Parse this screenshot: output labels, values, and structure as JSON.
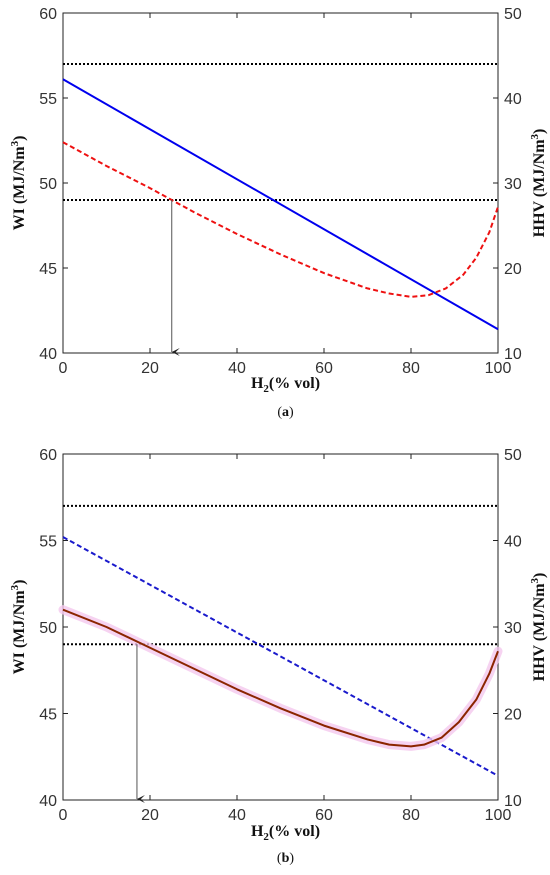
{
  "chart_data": [
    {
      "panel_label": "(",
      "panel_letter": "a",
      "panel_close": ")",
      "type": "line",
      "xlabel_main": "H",
      "xlabel_sub": "2",
      "xlabel_rest": "(% vol)",
      "ylabel_left": "WI (MJ/Nm",
      "ylabel_left_sup": "3",
      "ylabel_left_close": ")",
      "ylabel_right": "HHV (MJ/Nm",
      "ylabel_right_sup": "3",
      "ylabel_right_close": ")",
      "xlim": [
        0,
        100
      ],
      "ylim_left": [
        40,
        60
      ],
      "ylim_right": [
        10,
        50
      ],
      "xticks": [
        "0",
        "20",
        "40",
        "60",
        "80",
        "100"
      ],
      "yticks_left": [
        "40",
        "45",
        "50",
        "55",
        "60"
      ],
      "yticks_right": [
        "10",
        "20",
        "30",
        "40",
        "50"
      ],
      "series": [
        {
          "axis": "left",
          "color": "#0000ee",
          "dash": "solid",
          "points": [
            [
              0,
              56.1
            ],
            [
              100,
              41.4
            ]
          ]
        },
        {
          "axis": "left",
          "color": "#ee1111",
          "dash": "dashed",
          "points": [
            [
              0,
              52.4
            ],
            [
              10,
              51.0
            ],
            [
              20,
              49.7
            ],
            [
              30,
              48.3
            ],
            [
              40,
              47.0
            ],
            [
              50,
              45.8
            ],
            [
              60,
              44.7
            ],
            [
              70,
              43.8
            ],
            [
              75,
              43.5
            ],
            [
              80,
              43.3
            ],
            [
              84,
              43.4
            ],
            [
              88,
              43.8
            ],
            [
              92,
              44.6
            ],
            [
              95,
              45.6
            ],
            [
              98,
              47.1
            ],
            [
              100,
              48.6
            ]
          ]
        }
      ],
      "hlines": [
        {
          "axis": "left",
          "y": 57,
          "color": "#000000"
        },
        {
          "axis": "left",
          "y": 49,
          "color": "#000000"
        }
      ],
      "arrow": {
        "x": 25,
        "y_from": 49,
        "y_to": 40,
        "color": "#555555"
      }
    },
    {
      "panel_label": "(",
      "panel_letter": "b",
      "panel_close": ")",
      "type": "line",
      "xlabel_main": "H",
      "xlabel_sub": "2",
      "xlabel_rest": "(% vol)",
      "ylabel_left": "WI (MJ/Nm",
      "ylabel_left_sup": "3",
      "ylabel_left_close": ")",
      "ylabel_right": "HHV (MJ/Nm",
      "ylabel_right_sup": "3",
      "ylabel_right_close": ")",
      "xlim": [
        0,
        100
      ],
      "ylim_left": [
        40,
        60
      ],
      "ylim_right": [
        10,
        50
      ],
      "xticks": [
        "0",
        "20",
        "40",
        "60",
        "80",
        "100"
      ],
      "yticks_left": [
        "40",
        "45",
        "50",
        "55",
        "60"
      ],
      "yticks_right": [
        "10",
        "20",
        "30",
        "40",
        "50"
      ],
      "series": [
        {
          "axis": "left",
          "color": "#1a1acc",
          "dash": "dashed",
          "points": [
            [
              0,
              55.2
            ],
            [
              100,
              41.4
            ]
          ]
        },
        {
          "axis": "left",
          "color": "#8b2500",
          "dash": "solid",
          "shadow": "#f4c8ee",
          "points": [
            [
              0,
              51.0
            ],
            [
              10,
              50.0
            ],
            [
              20,
              48.8
            ],
            [
              30,
              47.6
            ],
            [
              40,
              46.4
            ],
            [
              50,
              45.3
            ],
            [
              60,
              44.3
            ],
            [
              70,
              43.5
            ],
            [
              75,
              43.2
            ],
            [
              80,
              43.1
            ],
            [
              83,
              43.2
            ],
            [
              87,
              43.6
            ],
            [
              91,
              44.5
            ],
            [
              95,
              45.8
            ],
            [
              98,
              47.3
            ],
            [
              100,
              48.6
            ]
          ]
        }
      ],
      "hlines": [
        {
          "axis": "left",
          "y": 57,
          "color": "#000000"
        },
        {
          "axis": "left",
          "y": 49,
          "color": "#000000"
        }
      ],
      "arrow": {
        "x": 17,
        "y_from": 49,
        "y_to": 40,
        "color": "#555555"
      }
    }
  ]
}
